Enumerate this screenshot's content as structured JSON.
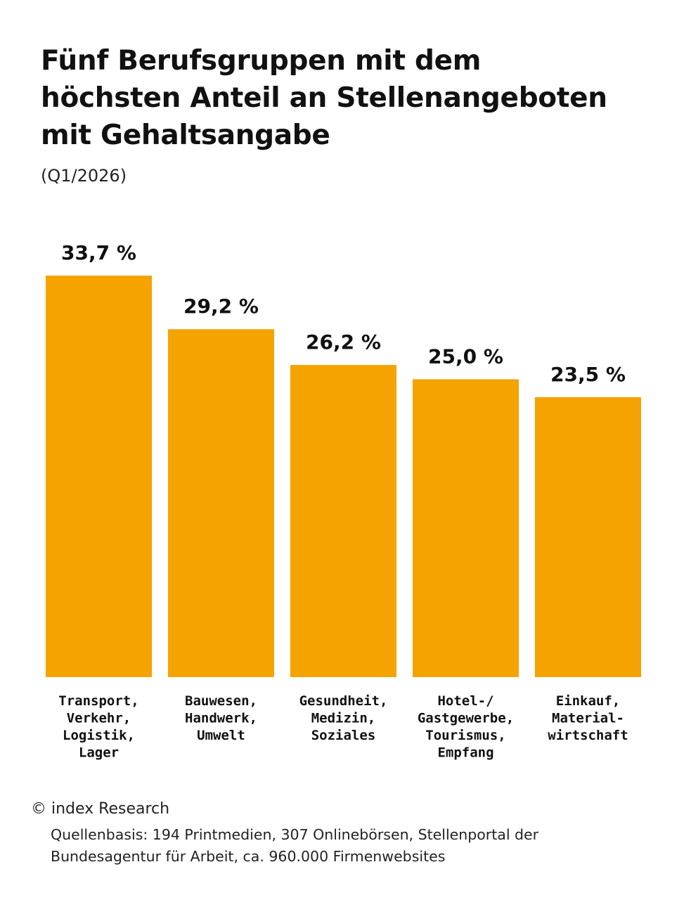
{
  "header": {
    "title_lines": [
      "Fünf Berufsgruppen mit dem",
      "höchsten Anteil an Stellenangeboten",
      "mit Gehaltsangabe"
    ],
    "subtitle": "(Q1/2026)"
  },
  "chart_data": {
    "type": "bar",
    "title": "Fünf Berufsgruppen mit dem höchsten Anteil an Stellenangeboten mit Gehaltsangabe",
    "subtitle": "(Q1/2026)",
    "categories": [
      "Transport, Verkehr, Logistik, Lager",
      "Bauwesen, Handwerk, Umwelt",
      "Gesundheit, Medizin, Soziales",
      "Hotel-/ Gastgewerbe, Tourismus, Empfang",
      "Einkauf, Material- wirtschaft"
    ],
    "category_lines": [
      [
        "Transport,",
        "Verkehr,",
        "Logistik,",
        "Lager"
      ],
      [
        "Bauwesen,",
        "Handwerk,",
        "Umwelt"
      ],
      [
        "Gesundheit,",
        "Medizin,",
        "Soziales"
      ],
      [
        "Hotel-/",
        "Gastgewerbe,",
        "Tourismus,",
        "Empfang"
      ],
      [
        "Einkauf,",
        "Material-",
        "wirtschaft"
      ]
    ],
    "values": [
      33.7,
      29.2,
      26.2,
      25.0,
      23.5
    ],
    "value_labels": [
      "33,7 %",
      "29,2 %",
      "26,2 %",
      "25,0 %",
      "23,5 %"
    ],
    "unit": "%",
    "ylim": [
      0,
      33.7
    ],
    "grid": false,
    "legend": "none",
    "bar_color": "#f4a300"
  },
  "footer": {
    "credit": "© index Research",
    "source_lines": [
      "Quellenbasis: 194 Printmedien, 307 Onlinebörsen, Stellenportal der",
      "Bundesagentur für Arbeit, ca. 960.000 Firmenwebsites"
    ]
  }
}
